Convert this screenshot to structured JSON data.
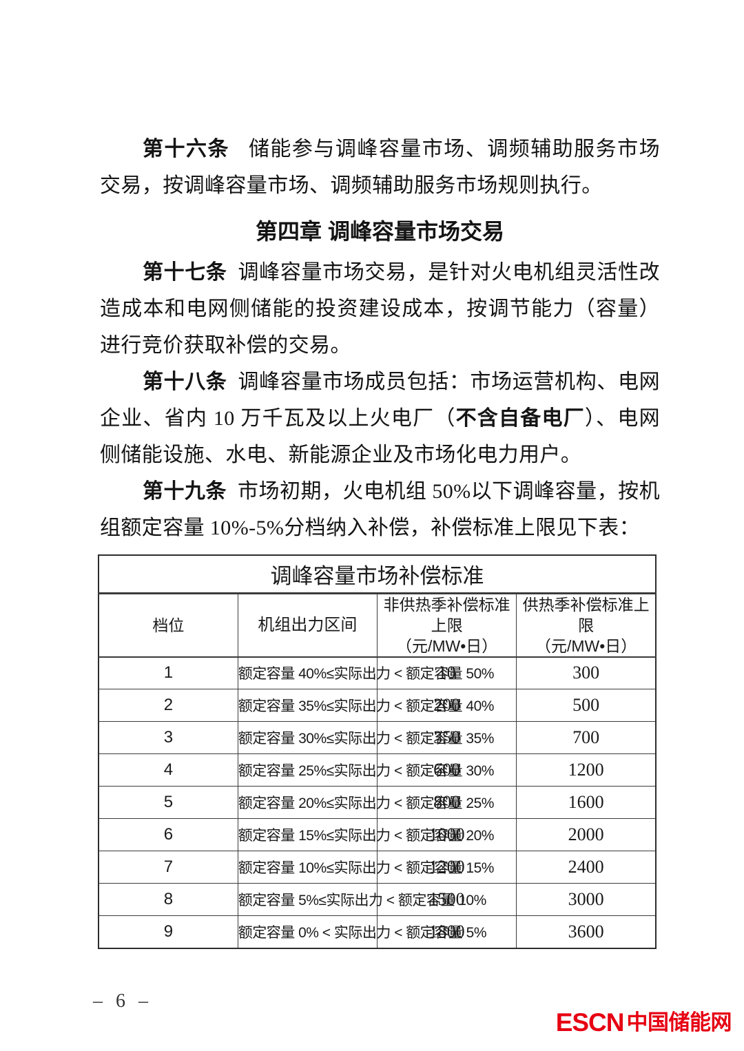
{
  "document": {
    "chapter_heading": "第四章 调峰容量市场交易",
    "articles": {
      "a16": {
        "label": "第十六条",
        "text": "储能参与调峰容量市场、调频辅助服务市场交易，按调峰容量市场、调频辅助服务市场规则执行。"
      },
      "a17": {
        "label": "第十七条",
        "text": "调峰容量市场交易，是针对火电机组灵活性改造成本和电网侧储能的投资建设成本，按调节能力（容量）进行竞价获取补偿的交易。"
      },
      "a18": {
        "label": "第十八条",
        "text_pre": "调峰容量市场成员包括：市场运营机构、电网企业、省内 10 万千瓦及以上火电厂（",
        "text_bold": "不含自备电厂",
        "text_post": "）、电网侧储能设施、水电、新能源企业及市场化电力用户。"
      },
      "a19": {
        "label": "第十九条",
        "text": "市场初期，火电机组 50%以下调峰容量，按机组额定容量 10%-5%分档纳入补偿，补偿标准上限见下表："
      }
    }
  },
  "table": {
    "title": "调峰容量市场补偿标准",
    "headers": {
      "grade": "档位",
      "range": "机组出力区间",
      "non_heating_line1": "非供热季补偿标准上限",
      "non_heating_line2": "（元/MW•日）",
      "heating_line1": "供热季补偿标准上限",
      "heating_line2": "（元/MW•日）"
    },
    "rows": [
      {
        "grade": "1",
        "range": "额定容量 40%≤实际出力 < 额定容量 50%",
        "non_heating": "10",
        "heating": "300"
      },
      {
        "grade": "2",
        "range": "额定容量 35%≤实际出力 < 额定容量 40%",
        "non_heating": "200",
        "heating": "500"
      },
      {
        "grade": "3",
        "range": "额定容量 30%≤实际出力 < 额定容量 35%",
        "non_heating": "350",
        "heating": "700"
      },
      {
        "grade": "4",
        "range": "额定容量 25%≤实际出力 < 额定容量 30%",
        "non_heating": "600",
        "heating": "1200"
      },
      {
        "grade": "5",
        "range": "额定容量 20%≤实际出力 < 额定容量 25%",
        "non_heating": "800",
        "heating": "1600"
      },
      {
        "grade": "6",
        "range": "额定容量 15%≤实际出力 < 额定容量 20%",
        "non_heating": "1000",
        "heating": "2000"
      },
      {
        "grade": "7",
        "range": "额定容量 10%≤实际出力 < 额定容量 15%",
        "non_heating": "1200",
        "heating": "2400"
      },
      {
        "grade": "8",
        "range": "额定容量 5%≤实际出力 < 额定容量 10%",
        "non_heating": "1500",
        "heating": "3000"
      },
      {
        "grade": "9",
        "range": "额定容量 0% < 实际出力 < 额定容量 5%",
        "non_heating": "1800",
        "heating": "3600"
      }
    ]
  },
  "footer": {
    "page_number": "– 6 –",
    "logo": {
      "latin": "ESCN",
      "chinese": "中国储能网",
      "color": "#e60012"
    }
  }
}
